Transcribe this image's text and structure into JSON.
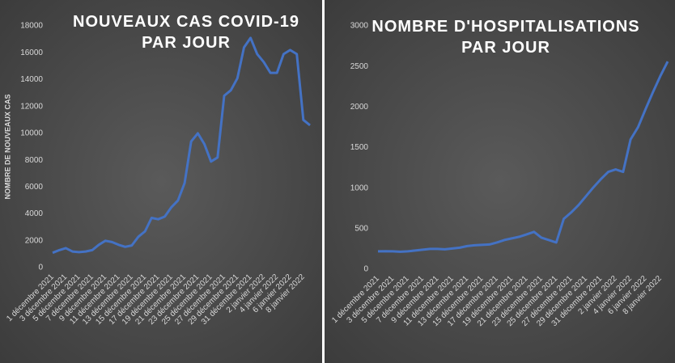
{
  "chart_data": [
    {
      "type": "line",
      "title": "NOUVEAUX CAS COVID-19 PAR JOUR",
      "y_label": "NOMBRE DE NOUVEAUX CAS",
      "categories": [
        "1 décembre 2021",
        null,
        "3 décembre 2021",
        null,
        "5 décembre 2021",
        null,
        "7 décembre 2021",
        null,
        "9 décembre 2021",
        null,
        "11 décembre 2021",
        null,
        "13 décembre 2021",
        null,
        "15 décembre 2021",
        null,
        "17 décembre 2021",
        null,
        "19 décembre 2021",
        null,
        "21 décembre 2021",
        null,
        "23 décembre 2021",
        null,
        "25 décembre 2021",
        null,
        "27 décembre 2021",
        null,
        "29 décembre 2021",
        null,
        "31 décembre 2021",
        null,
        "2 janvier 2022",
        null,
        "4 janvier 2022",
        null,
        "6 janvier 2022",
        null,
        "8 janvier 2022",
        null
      ],
      "values": [
        1100,
        1300,
        1450,
        1200,
        1150,
        1200,
        1300,
        1700,
        2000,
        1900,
        1700,
        1550,
        1650,
        2300,
        2700,
        3700,
        3600,
        3800,
        4500,
        5000,
        6300,
        9400,
        10000,
        9200,
        7900,
        8200,
        12800,
        13200,
        14100,
        16400,
        17100,
        15900,
        15300,
        14500,
        14500,
        15900,
        16200,
        15900,
        11000,
        10600
      ],
      "color": "#4472c4",
      "ylim": [
        0,
        18000
      ],
      "yticks": [
        0,
        2000,
        4000,
        6000,
        8000,
        10000,
        12000,
        14000,
        16000,
        18000
      ],
      "grid": false
    },
    {
      "type": "line",
      "title": "NOMBRE D'HOSPITALISATIONS PAR JOUR",
      "categories": [
        "1 décembre 2021",
        null,
        "3 décembre 2021",
        null,
        "5 décembre 2021",
        null,
        "7 décembre 2021",
        null,
        "9 décembre 2021",
        null,
        "11 décembre 2021",
        null,
        "13 décembre 2021",
        null,
        "15 décembre 2021",
        null,
        "17 décembre 2021",
        null,
        "19 décembre 2021",
        null,
        "21 décembre 2021",
        null,
        "23 décembre 2021",
        null,
        "25 décembre 2021",
        null,
        "27 décembre 2021",
        null,
        "29 décembre 2021",
        null,
        "31 décembre 2021",
        null,
        "2 janvier 2022",
        null,
        "4 janvier 2022",
        null,
        "6 janvier 2022",
        null,
        "8 janvier 2022",
        null
      ],
      "values": [
        220,
        222,
        220,
        215,
        220,
        230,
        240,
        250,
        250,
        245,
        255,
        265,
        285,
        295,
        300,
        305,
        330,
        360,
        380,
        400,
        430,
        460,
        390,
        360,
        330,
        620,
        700,
        790,
        900,
        1010,
        1110,
        1200,
        1230,
        1200,
        1600,
        1750,
        1970,
        2180,
        2380,
        2560
      ],
      "color": "#4472c4",
      "ylim": [
        0,
        3000
      ],
      "yticks": [
        0,
        500,
        1000,
        1500,
        2000,
        2500,
        3000
      ],
      "grid": false
    }
  ]
}
